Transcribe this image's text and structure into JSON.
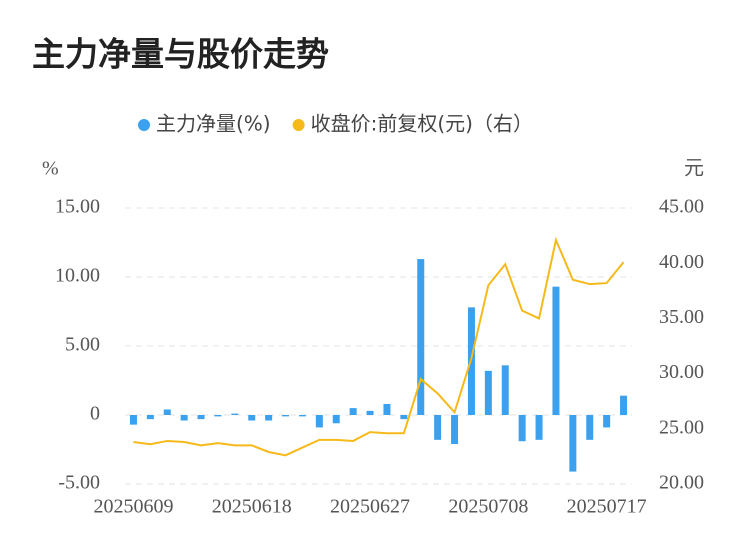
{
  "chart_data": {
    "type": "bar_line",
    "title": "主力净量与股价走势",
    "y_unit": "%",
    "y2_unit": "元",
    "categories": [
      "20250609",
      null,
      null,
      null,
      null,
      null,
      null,
      "20250618",
      null,
      null,
      null,
      null,
      null,
      null,
      "20250627",
      null,
      null,
      null,
      null,
      null,
      null,
      "20250708",
      null,
      null,
      null,
      null,
      null,
      null,
      "20250717",
      null
    ],
    "series": [
      {
        "name": "主力净量(%)",
        "color": "#3ba1ee",
        "type": "bar",
        "values": [
          -0.7,
          -0.3,
          0.4,
          -0.4,
          -0.3,
          -0.1,
          0.1,
          -0.4,
          -0.4,
          -0.1,
          -0.1,
          -0.9,
          -0.6,
          0.5,
          0.3,
          0.8,
          -0.3,
          11.3,
          -1.8,
          -2.1,
          7.8,
          3.2,
          3.6,
          -1.9,
          -1.8,
          9.3,
          -4.1,
          -1.8,
          -0.9,
          1.4
        ]
      },
      {
        "name": "收盘价:前复权(元)（右）",
        "color": "#f5b91a",
        "type": "line",
        "axis": "y2",
        "values": [
          23.8,
          23.6,
          23.9,
          23.8,
          23.5,
          23.7,
          23.5,
          23.5,
          22.9,
          22.6,
          23.3,
          24.0,
          24.0,
          23.9,
          24.7,
          24.6,
          24.6,
          29.5,
          28.2,
          26.5,
          31.4,
          38.0,
          39.9,
          35.7,
          35.0,
          42.1,
          38.5,
          38.1,
          38.2,
          40.1
        ]
      }
    ],
    "ylim": [
      -5,
      15
    ],
    "yticks": [
      {
        "value": -5,
        "label": "-5.00"
      },
      0,
      {
        "value": 5,
        "label": "5.00"
      },
      {
        "value": 10,
        "label": "10.00"
      },
      {
        "value": 15,
        "label": "15.00"
      }
    ],
    "y2lim": [
      20,
      45
    ],
    "y2ticks": [
      {
        "value": 20,
        "label": "20.00"
      },
      {
        "value": 25,
        "label": "25.00"
      },
      {
        "value": 30,
        "label": "30.00"
      },
      {
        "value": 35,
        "label": "35.00"
      },
      {
        "value": 40,
        "label": "40.00"
      },
      {
        "value": 45,
        "label": "45.00"
      }
    ],
    "grid": true
  }
}
